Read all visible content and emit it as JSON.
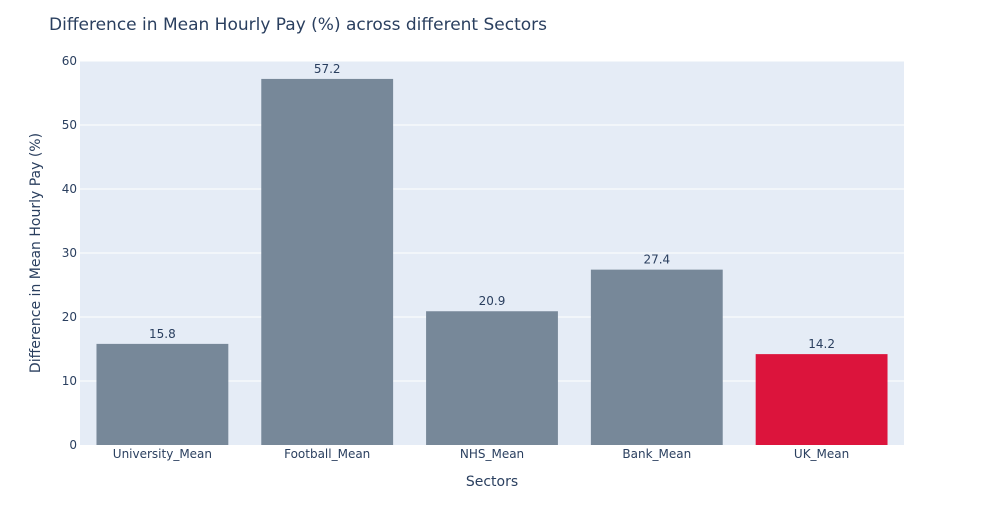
{
  "chart_data": {
    "type": "bar",
    "title": "Difference in Mean Hourly Pay (%) across different Sectors",
    "xlabel": "Sectors",
    "ylabel": "Difference in Mean Hourly Pay (%)",
    "categories": [
      "University_Mean",
      "Football_Mean",
      "NHS_Mean",
      "Bank_Mean",
      "UK_Mean"
    ],
    "values": [
      15.8,
      57.2,
      20.9,
      27.4,
      14.2
    ],
    "value_labels": [
      "15.8",
      "57.2",
      "20.9",
      "27.4",
      "14.2"
    ],
    "colors": [
      "#778899",
      "#778899",
      "#778899",
      "#778899",
      "#dc143c"
    ],
    "ylim": [
      0,
      60
    ],
    "yticks": [
      0,
      10,
      20,
      30,
      40,
      50,
      60
    ],
    "ytick_labels": [
      "0",
      "10",
      "20",
      "30",
      "40",
      "50",
      "60"
    ],
    "grid": true,
    "plot_background": "#e5ecf6",
    "gridline_color": "#ffffff",
    "text_color": "#2a3f5f"
  }
}
